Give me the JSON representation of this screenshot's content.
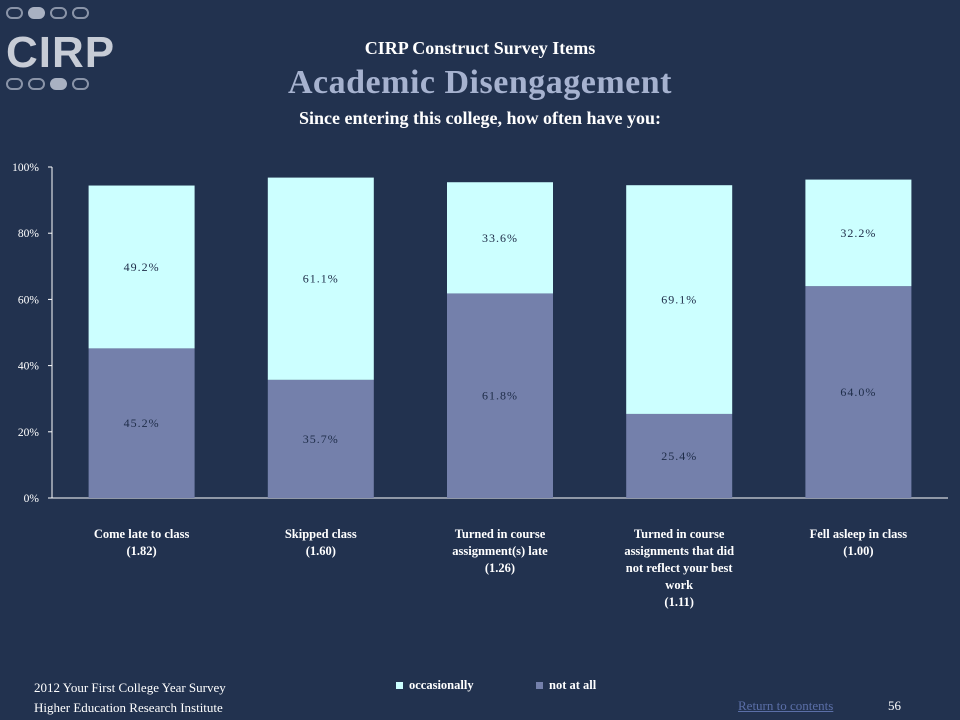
{
  "logo": {
    "text": "CIRP"
  },
  "header": {
    "pretitle": "CIRP Construct Survey Items",
    "title": "Academic Disengagement",
    "subtitle": "Since entering this college, how often have you:"
  },
  "colors": {
    "background": "#22324f",
    "not_at_all": "#7480ab",
    "occasionally": "#ccffff",
    "title_accent": "#a6b2cf"
  },
  "chart_data": {
    "type": "bar",
    "stacked": true,
    "categories": [
      [
        "Come late to class",
        "(1.82)"
      ],
      [
        "Skipped class",
        "(1.60)"
      ],
      [
        "Turned in course",
        "assignment(s) late",
        "(1.26)"
      ],
      [
        "Turned in course",
        "assignments that did",
        "not reflect your best",
        "work",
        "(1.11)"
      ],
      [
        "Fell asleep in class",
        "(1.00)"
      ]
    ],
    "series": [
      {
        "name": "not at all",
        "values": [
          45.2,
          35.7,
          61.8,
          25.4,
          64.0
        ],
        "labels": [
          "45.2%",
          "35.7%",
          "61.8%",
          "25.4%",
          "64.0%"
        ]
      },
      {
        "name": "occasionally",
        "values": [
          49.2,
          61.1,
          33.6,
          69.1,
          32.2
        ],
        "labels": [
          "49.2%",
          "61.1%",
          "33.6%",
          "69.1%",
          "32.2%"
        ]
      }
    ],
    "ylim": [
      0,
      100
    ],
    "yticks": [
      "0%",
      "20%",
      "40%",
      "60%",
      "80%",
      "100%"
    ],
    "grid": false,
    "legend_position": "bottom"
  },
  "legend": {
    "occasionally": "occasionally",
    "not_at_all": "not at all"
  },
  "footer": {
    "line1": "2012 Your First College Year Survey",
    "line2": "Higher Education Research Institute",
    "return_link": "Return to contents",
    "page_number": "56"
  }
}
